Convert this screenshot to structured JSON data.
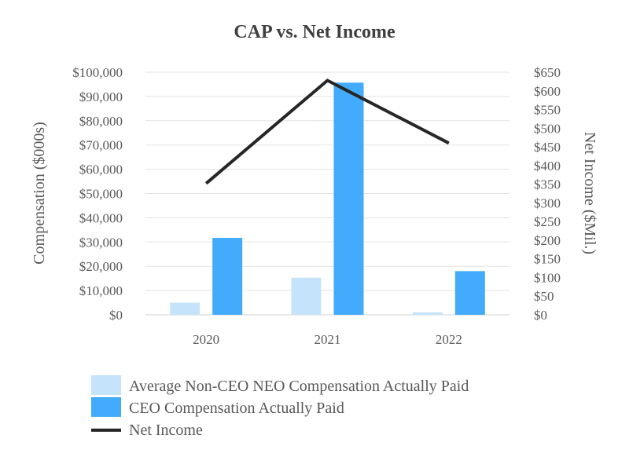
{
  "chart_data": {
    "type": "bar",
    "title": "CAP vs. Net Income",
    "categories": [
      "2020",
      "2021",
      "2022"
    ],
    "ylabel": "Compensation ($000s)",
    "y2label": "Net Income ($Mil.)",
    "ylim": [
      0,
      100000
    ],
    "y2lim": [
      0,
      650
    ],
    "yticks": [
      "$0",
      "$10,000",
      "$20,000",
      "$30,000",
      "$40,000",
      "$50,000",
      "$60,000",
      "$70,000",
      "$80,000",
      "$90,000",
      "$100,000"
    ],
    "y2ticks": [
      "$0",
      "$50",
      "$100",
      "$150",
      "$200",
      "$250",
      "$300",
      "$350",
      "$400",
      "$450",
      "$500",
      "$550",
      "$600",
      "$650"
    ],
    "grid": true,
    "legend_position": "bottom",
    "series": [
      {
        "name": "Average Non-CEO NEO Compensation Actually Paid",
        "type": "bar",
        "axis": "left",
        "color": "#C5E4FB",
        "values": [
          5000,
          15300,
          1000
        ]
      },
      {
        "name": "CEO Compensation Actually Paid",
        "type": "bar",
        "axis": "left",
        "color": "#42ABFB",
        "values": [
          31700,
          95700,
          18000
        ]
      },
      {
        "name": "Net Income",
        "type": "line",
        "axis": "right",
        "color": "#262626",
        "values": [
          352,
          628,
          460
        ]
      }
    ]
  }
}
